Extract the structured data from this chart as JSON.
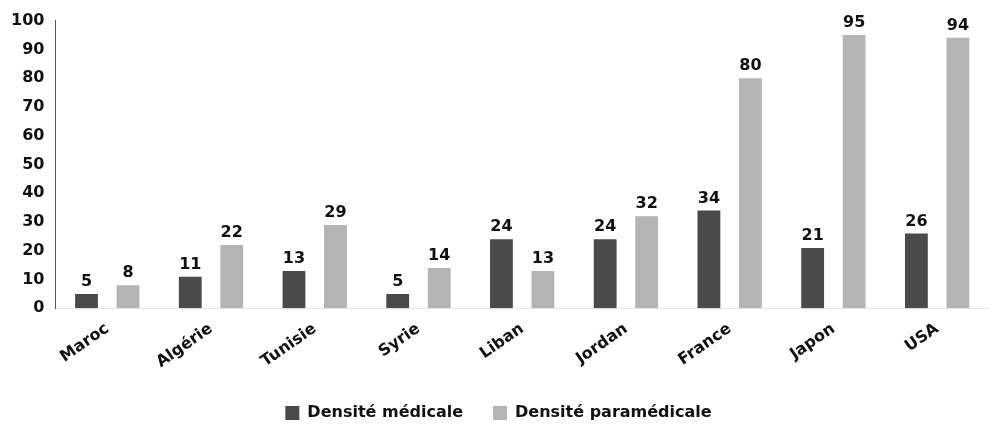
{
  "chart_data": {
    "type": "bar",
    "categories": [
      "Maroc",
      "Algérie",
      "Tunisie",
      "Syrie",
      "Liban",
      "Jordan",
      "France",
      "Japon",
      "USA"
    ],
    "series": [
      {
        "name": "Densité médicale",
        "color": "#4a4a4a",
        "values": [
          5,
          11,
          13,
          5,
          24,
          24,
          34,
          21,
          26
        ]
      },
      {
        "name": "Densité paramédicale",
        "color": "#b4b4b4",
        "values": [
          8,
          22,
          29,
          14,
          13,
          32,
          80,
          95,
          94
        ]
      }
    ],
    "ylim": [
      0,
      100
    ],
    "yticks": [
      0,
      10,
      20,
      30,
      40,
      50,
      60,
      70,
      80,
      90,
      100
    ],
    "grid": false,
    "legend": "bottom",
    "data_labels": true
  }
}
